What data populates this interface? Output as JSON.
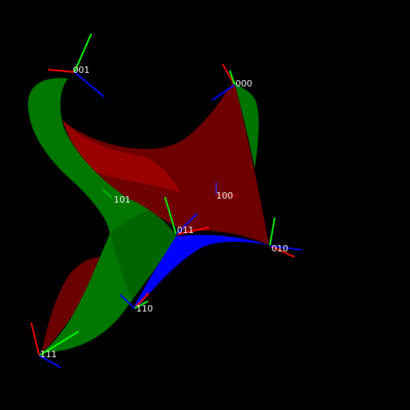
{
  "scene": {
    "background": "#000000",
    "surface_colors": {
      "green": "#008000",
      "dark_green": "#006400",
      "red": "#8b0000",
      "dark_red": "#600000",
      "blue": "#0000ff"
    },
    "axis_colors": {
      "x": "#ff0000",
      "y": "#00ff00",
      "z": "#0000ff"
    },
    "vertex_labels": {
      "v001": "001",
      "v000": "000",
      "v101": "101",
      "v100": "100",
      "v011": "011",
      "v010": "010",
      "v110": "110",
      "v111": "111"
    }
  }
}
